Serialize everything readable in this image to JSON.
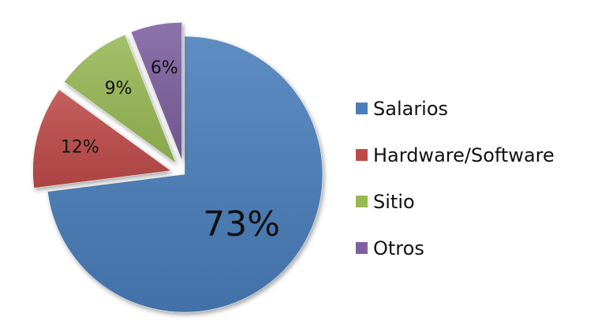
{
  "chart_data": {
    "type": "pie",
    "slices": [
      {
        "label": "Salarios",
        "value": 73,
        "display": "73%",
        "color": "#4A7EBB",
        "exploded": false
      },
      {
        "label": "Hardware/Software",
        "value": 12,
        "display": "12%",
        "color": "#BE4B48",
        "exploded": true
      },
      {
        "label": "Sitio",
        "value": 9,
        "display": "9%",
        "color": "#98B954",
        "exploded": true
      },
      {
        "label": "Otros",
        "value": 6,
        "display": "6%",
        "color": "#7D60A0",
        "exploded": true
      }
    ],
    "legend_position": "right",
    "data_labels": "percent"
  }
}
